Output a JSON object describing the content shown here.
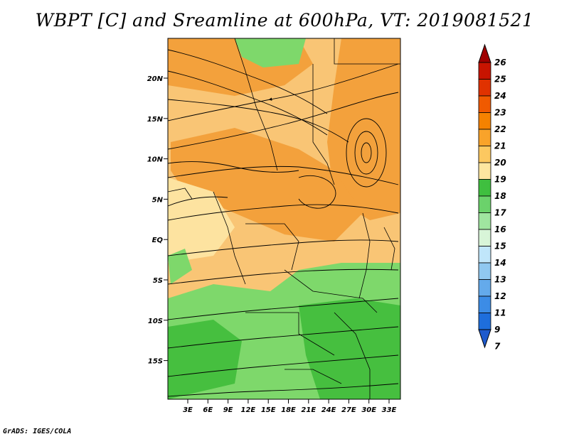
{
  "title": "WBPT [C] and Sreamline at 600hPa, VT: 2019081521",
  "credit": "GrADS: IGES/COLA",
  "map": {
    "lat_labels": [
      "20N",
      "15N",
      "10N",
      "5N",
      "EQ",
      "5S",
      "10S",
      "15S"
    ],
    "lon_labels": [
      "3E",
      "6E",
      "9E",
      "12E",
      "15E",
      "18E",
      "21E",
      "24E",
      "27E",
      "30E",
      "33E"
    ],
    "field": "WBPT",
    "overlay": "Streamline"
  },
  "colorbar": {
    "labels": [
      "26",
      "25",
      "24",
      "23",
      "22",
      "21",
      "20",
      "19",
      "18",
      "17",
      "16",
      "15",
      "14",
      "13",
      "12",
      "11",
      "9",
      "7"
    ],
    "colors": [
      "#a00000",
      "#c81400",
      "#e03200",
      "#f05a00",
      "#f58200",
      "#f9a32a",
      "#fcc860",
      "#fde6a0",
      "#3fbf3f",
      "#6bd26b",
      "#a0e5a0",
      "#d8f5d8",
      "#c0e6fa",
      "#90c8f0",
      "#64aaeb",
      "#3c8ce6",
      "#1e6edc",
      "#1e5acd"
    ]
  },
  "map_colors": {
    "orange": "#f3a13c",
    "light_orange": "#f9c575",
    "cream": "#fde3a0",
    "green": "#46bf3f",
    "light_green": "#7ed86b",
    "pale_green": "#a8e29a"
  }
}
